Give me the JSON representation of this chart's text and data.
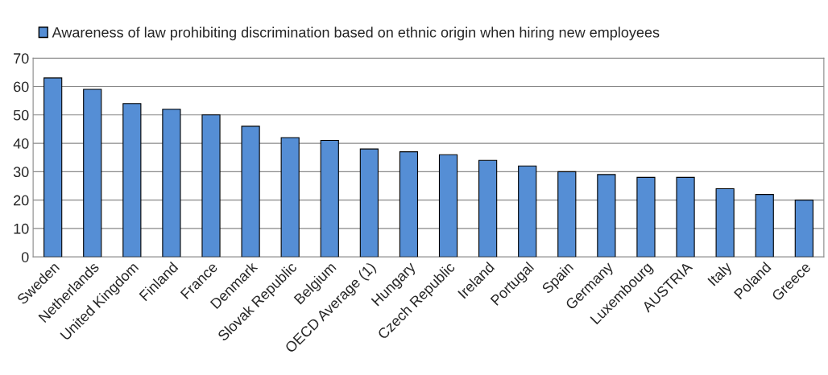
{
  "chart_data": {
    "type": "bar",
    "categories": [
      "Sweden",
      "Netherlands",
      "United Kingdom",
      "Finland",
      "France",
      "Denmark",
      "Slovak Republic",
      "Belgium",
      "OECD Average (1)",
      "Hungary",
      "Czech Republic",
      "Ireland",
      "Portugal",
      "Spain",
      "Germany",
      "Luxembourg",
      "AUSTRIA",
      "Italy",
      "Poland",
      "Greece"
    ],
    "series": [
      {
        "name": "Awareness of law prohibiting discrimination based on ethnic origin when hiring new employees",
        "color": "#558ed5",
        "values": [
          63,
          59,
          54,
          52,
          50,
          46,
          42,
          41,
          38,
          37,
          36,
          34,
          32,
          30,
          29,
          28,
          28,
          24,
          22,
          20
        ]
      }
    ],
    "ylim": [
      0,
      70
    ],
    "yticks": [
      0,
      10,
      20,
      30,
      40,
      50,
      60,
      70
    ],
    "grid": "y",
    "legend": "top"
  }
}
